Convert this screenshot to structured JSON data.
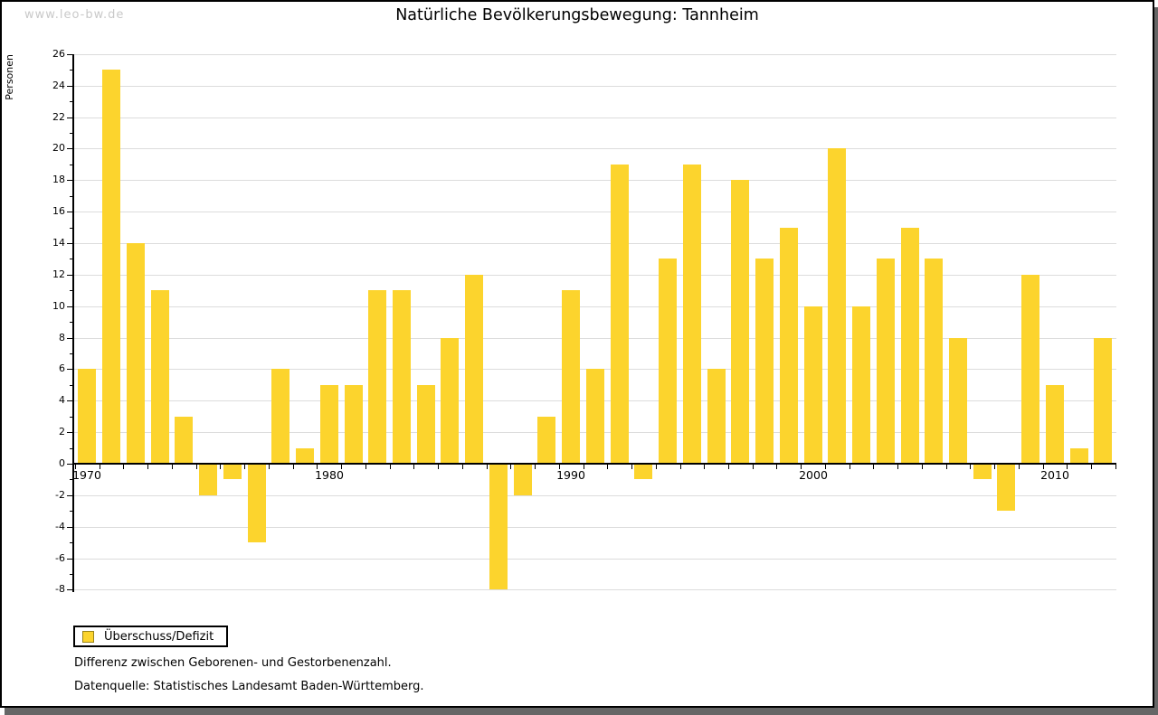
{
  "page": {
    "watermark": "www.leo-bw.de"
  },
  "chart_data": {
    "type": "bar",
    "title": "Natürliche Bevölkerungsbewegung: Tannheim",
    "xlabel": "",
    "ylabel": "Personen",
    "ylim": [
      -8,
      26
    ],
    "ytick_step": 2,
    "grid": true,
    "legend_position": "bottom-left",
    "series_label": "Überschuss/Defizit",
    "categories": [
      1970,
      1971,
      1972,
      1973,
      1974,
      1975,
      1976,
      1977,
      1978,
      1979,
      1980,
      1981,
      1982,
      1983,
      1984,
      1985,
      1986,
      1987,
      1988,
      1989,
      1990,
      1991,
      1992,
      1993,
      1994,
      1995,
      1996,
      1997,
      1998,
      1999,
      2000,
      2001,
      2002,
      2003,
      2004,
      2005,
      2006,
      2007,
      2008,
      2009,
      2010,
      2011,
      2012
    ],
    "values": [
      6,
      25,
      14,
      11,
      3,
      -2,
      -1,
      -5,
      6,
      1,
      5,
      5,
      11,
      11,
      5,
      8,
      12,
      -8,
      -2,
      3,
      11,
      6,
      19,
      -1,
      13,
      19,
      6,
      18,
      13,
      15,
      10,
      20,
      10,
      13,
      15,
      13,
      8,
      -1,
      -3,
      12,
      5,
      1,
      8
    ],
    "xticks_labeled": [
      1970,
      1980,
      1990,
      2000,
      2010
    ],
    "colors": {
      "bar": "#fcd42d",
      "legend_swatch_border": "#9a8419",
      "grid": "#dcdcdc",
      "axis": "#000000",
      "shadow": "#666666",
      "watermark": "#c9c9c9"
    }
  },
  "legend": {
    "label": "Überschuss/Defizit"
  },
  "footer": {
    "line1": "Differenz zwischen Geborenen- und Gestorbenenzahl.",
    "line2": "Datenquelle: Statistisches Landesamt Baden-Württemberg."
  }
}
